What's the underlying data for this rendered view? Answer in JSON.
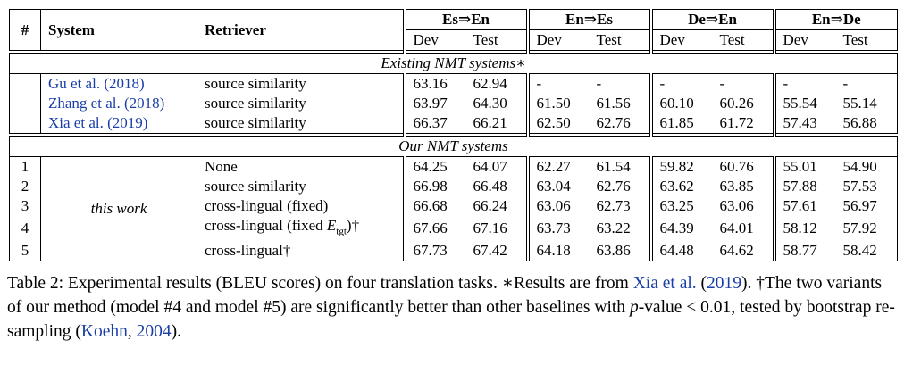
{
  "table": {
    "header": {
      "index": "#",
      "system": "System",
      "retriever": "Retriever",
      "tasks": [
        "Es⇒En",
        "En⇒Es",
        "De⇒En",
        "En⇒De"
      ],
      "splits": [
        "Dev",
        "Test",
        "Dev",
        "Test",
        "Dev",
        "Test",
        "Dev",
        "Test"
      ]
    },
    "sections": [
      {
        "title": "Existing NMT systems∗",
        "rows": [
          {
            "system": "Gu et al. (2018)",
            "retriever": "source similarity",
            "scores": [
              "63.16",
              "62.94",
              "-",
              "-",
              "-",
              "-",
              "-",
              "-"
            ]
          },
          {
            "system": "Zhang et al. (2018)",
            "retriever": "source similarity",
            "scores": [
              "63.97",
              "64.30",
              "61.50",
              "61.56",
              "60.10",
              "60.26",
              "55.54",
              "55.14"
            ]
          },
          {
            "system": "Xia et al. (2019)",
            "retriever": "source similarity",
            "scores": [
              "66.37",
              "66.21",
              "62.50",
              "62.76",
              "61.85",
              "61.72",
              "57.43",
              "56.88"
            ]
          }
        ]
      },
      {
        "title": "Our NMT systems",
        "system": "this work",
        "rows": [
          {
            "index": "1",
            "retriever": "None",
            "scores": [
              "64.25",
              "64.07",
              "62.27",
              "61.54",
              "59.82",
              "60.76",
              "55.01",
              "54.90"
            ]
          },
          {
            "index": "2",
            "retriever": "source similarity",
            "scores": [
              "66.98",
              "66.48",
              "63.04",
              "62.76",
              "63.62",
              "63.85",
              "57.88",
              "57.53"
            ]
          },
          {
            "index": "3",
            "retriever": "cross-lingual (fixed)",
            "scores": [
              "66.68",
              "66.24",
              "63.06",
              "62.73",
              "63.25",
              "63.06",
              "57.61",
              "56.97"
            ]
          },
          {
            "index": "4",
            "retriever": {
              "text": "cross-lingual (fixed ",
              "var": "E",
              "sub": "tgt",
              "suffix": ")†"
            },
            "scores": [
              "67.66",
              "67.16",
              "63.73",
              "63.22",
              "64.39",
              "64.01",
              "58.12",
              "57.92"
            ]
          },
          {
            "index": "5",
            "retriever": "cross-lingual†",
            "bold": true,
            "scores": [
              "67.73",
              "67.42",
              "64.18",
              "63.86",
              "64.48",
              "64.62",
              "58.77",
              "58.42"
            ]
          }
        ]
      }
    ]
  },
  "caption": [
    {
      "text": "Table 2: Experimental results (BLEU scores) on four translation tasks. ∗Results are from "
    },
    {
      "text": "Xia et al.",
      "style": "link"
    },
    {
      "text": " ("
    },
    {
      "text": "2019",
      "style": "link"
    },
    {
      "text": "). †The two variants of our method (model #4 and model #5) are significantly better than other baselines with "
    },
    {
      "text": "p",
      "style": "italic"
    },
    {
      "text": "-value < 0.01, tested by bootstrap re-sampling ("
    },
    {
      "text": "Koehn",
      "style": "link"
    },
    {
      "text": ", "
    },
    {
      "text": "2004",
      "style": "link"
    },
    {
      "text": ")."
    }
  ]
}
